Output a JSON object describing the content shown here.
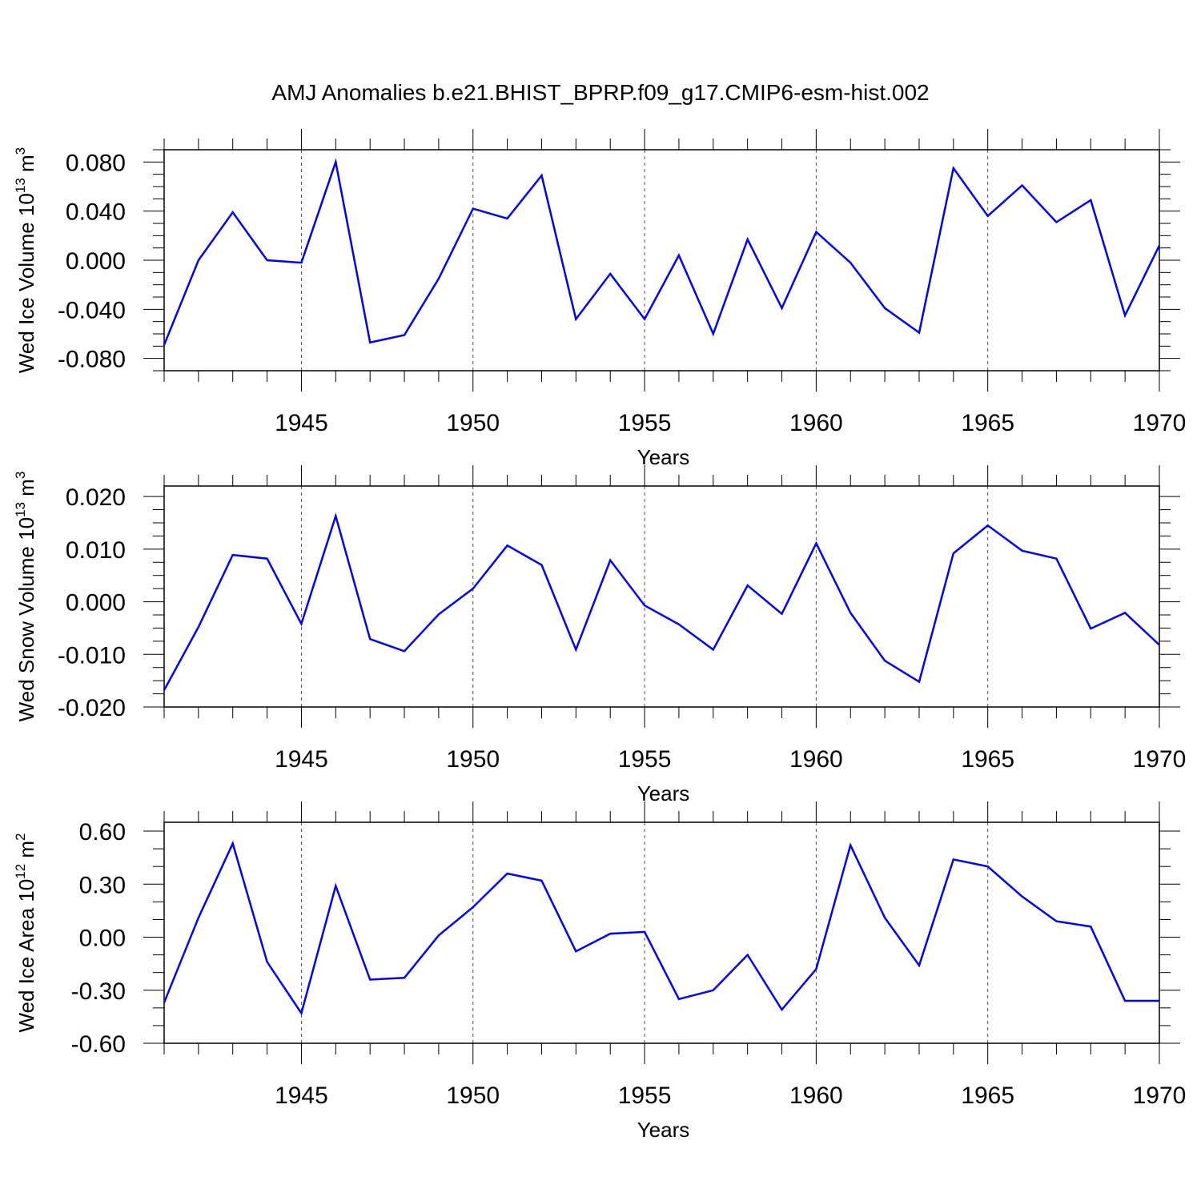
{
  "figure": {
    "title": "AMJ Anomalies b.e21.BHIST_BPRP.f09_g17.CMIP6-esm-hist.002"
  },
  "chart_data": [
    {
      "type": "line",
      "title": "",
      "xlabel": "Years",
      "ylabel": {
        "base": "Wed Ice Volume 10",
        "exp": "13",
        "unit": " m",
        "unit_exp": "3"
      },
      "xlim": [
        1941,
        1970
      ],
      "ylim": [
        -0.09,
        0.09
      ],
      "x_ticks": [
        1945,
        1950,
        1955,
        1960,
        1965,
        1970
      ],
      "x_tick_labels": [
        "1945",
        "1950",
        "1955",
        "1960",
        "1965",
        "1970"
      ],
      "y_ticks": [
        -0.08,
        -0.04,
        0.0,
        0.04,
        0.08
      ],
      "y_tick_labels": [
        "-0.080",
        "-0.040",
        "0.000",
        "0.040",
        "0.080"
      ],
      "y_minor_step": 0.01,
      "grid": "dashed vertical at major x ticks",
      "line_color": "#0000ff",
      "x": [
        1941,
        1942,
        1943,
        1944,
        1945,
        1946,
        1947,
        1948,
        1949,
        1950,
        1951,
        1952,
        1953,
        1954,
        1955,
        1956,
        1957,
        1958,
        1959,
        1960,
        1961,
        1962,
        1963,
        1964,
        1965,
        1966,
        1967,
        1968,
        1969,
        1970
      ],
      "series": [
        {
          "values": [
            -0.069,
            0.0,
            0.039,
            0.0,
            -0.002,
            0.08,
            -0.067,
            -0.061,
            -0.015,
            0.042,
            0.034,
            0.069,
            -0.048,
            -0.011,
            -0.048,
            0.004,
            -0.06,
            0.017,
            -0.039,
            0.023,
            -0.002,
            -0.039,
            -0.059,
            0.075,
            0.036,
            0.061,
            0.031,
            0.049,
            -0.045,
            0.012
          ]
        }
      ]
    },
    {
      "type": "line",
      "title": "",
      "xlabel": "Years",
      "ylabel": {
        "base": "Wed Snow Volume 10",
        "exp": "13",
        "unit": " m",
        "unit_exp": "3"
      },
      "xlim": [
        1941,
        1970
      ],
      "ylim": [
        -0.02,
        0.022
      ],
      "x_ticks": [
        1945,
        1950,
        1955,
        1960,
        1965,
        1970
      ],
      "x_tick_labels": [
        "1945",
        "1950",
        "1955",
        "1960",
        "1965",
        "1970"
      ],
      "y_ticks": [
        -0.02,
        -0.01,
        0.0,
        0.01,
        0.02
      ],
      "y_tick_labels": [
        "-0.020",
        "-0.010",
        "0.000",
        "0.010",
        "0.020"
      ],
      "y_minor_step": 0.0025,
      "grid": "dashed vertical at major x ticks",
      "line_color": "#0000ff",
      "x": [
        1941,
        1942,
        1943,
        1944,
        1945,
        1946,
        1947,
        1948,
        1949,
        1950,
        1951,
        1952,
        1953,
        1954,
        1955,
        1956,
        1957,
        1958,
        1959,
        1960,
        1961,
        1962,
        1963,
        1964,
        1965,
        1966,
        1967,
        1968,
        1969,
        1970
      ],
      "series": [
        {
          "values": [
            -0.0168,
            -0.0048,
            0.0089,
            0.0082,
            -0.0042,
            0.0163,
            -0.0071,
            -0.0094,
            -0.0024,
            0.0025,
            0.0107,
            0.007,
            -0.0091,
            0.0079,
            -0.0007,
            -0.0043,
            -0.0091,
            0.0031,
            -0.0023,
            0.0111,
            -0.0021,
            -0.0112,
            -0.0152,
            0.0092,
            0.0145,
            0.0097,
            0.0082,
            -0.0051,
            -0.0021,
            -0.0082
          ]
        }
      ]
    },
    {
      "type": "line",
      "title": "",
      "xlabel": "Years",
      "ylabel": {
        "base": "Wed Ice Area 10",
        "exp": "12",
        "unit": " m",
        "unit_exp": "2"
      },
      "xlim": [
        1941,
        1970
      ],
      "ylim": [
        -0.6,
        0.65
      ],
      "x_ticks": [
        1945,
        1950,
        1955,
        1960,
        1965,
        1970
      ],
      "x_tick_labels": [
        "1945",
        "1950",
        "1955",
        "1960",
        "1965",
        "1970"
      ],
      "y_ticks": [
        -0.6,
        -0.3,
        0.0,
        0.3,
        0.6
      ],
      "y_tick_labels": [
        "-0.60",
        "-0.30",
        "0.00",
        "0.30",
        "0.60"
      ],
      "y_minor_step": 0.1,
      "grid": "dashed vertical at major x ticks",
      "line_color": "#0000ff",
      "x": [
        1941,
        1942,
        1943,
        1944,
        1945,
        1946,
        1947,
        1948,
        1949,
        1950,
        1951,
        1952,
        1953,
        1954,
        1955,
        1956,
        1957,
        1958,
        1959,
        1960,
        1961,
        1962,
        1963,
        1964,
        1965,
        1966,
        1967,
        1968,
        1969,
        1970
      ],
      "series": [
        {
          "values": [
            -0.37,
            0.11,
            0.53,
            -0.14,
            -0.43,
            0.29,
            -0.24,
            -0.23,
            0.01,
            0.17,
            0.36,
            0.32,
            -0.08,
            0.02,
            0.03,
            -0.35,
            -0.3,
            -0.1,
            -0.41,
            -0.18,
            0.52,
            0.11,
            -0.16,
            0.44,
            0.4,
            0.23,
            0.09,
            0.06,
            -0.36,
            -0.36
          ]
        }
      ]
    }
  ]
}
